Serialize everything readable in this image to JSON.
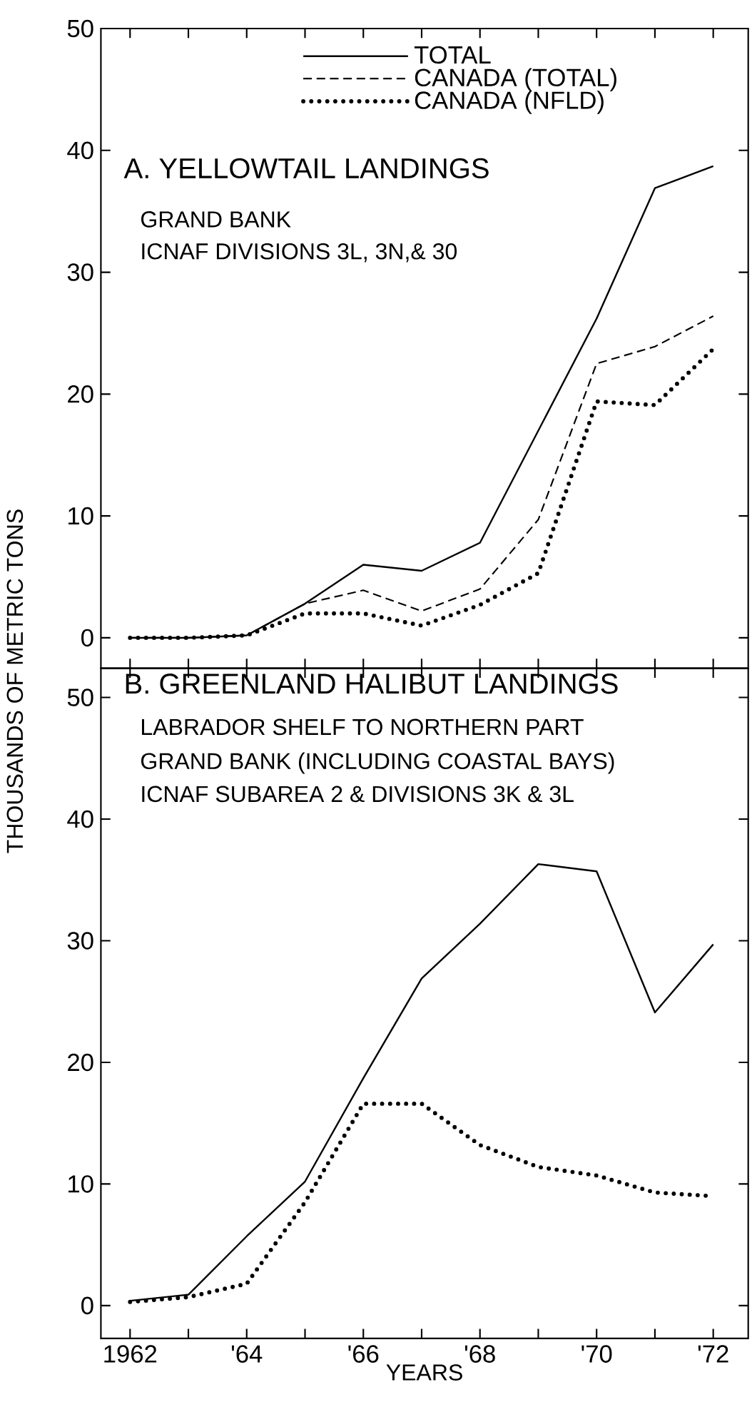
{
  "chart_data": [
    {
      "type": "line",
      "title": "A.  YELLOWTAIL LANDINGS",
      "subtitle": "GRAND BANK",
      "annotations": [
        "ICNAF DIVISIONS 3L, 3N,& 30"
      ],
      "ylabel": "THOUSANDS OF METRIC TONS",
      "x": [
        1962,
        1963,
        1964,
        1965,
        1966,
        1967,
        1968,
        1969,
        1970,
        1971,
        1972
      ],
      "series": [
        {
          "name": "TOTAL",
          "color": "#000000",
          "line_style": "solid",
          "values": [
            0,
            0,
            0.2,
            2.8,
            6.0,
            5.5,
            7.8,
            17,
            26.2,
            36.9,
            38.7
          ]
        },
        {
          "name": "CANADA (TOTAL)",
          "color": "#000000",
          "line_style": "dashed",
          "values": [
            0,
            0,
            0.2,
            2.8,
            3.9,
            2.2,
            4.0,
            9.7,
            22.5,
            23.9,
            26.4
          ]
        },
        {
          "name": "CANADA (NFLD)",
          "color": "#000000",
          "line_style": "dotted",
          "values": [
            0,
            0,
            0.2,
            2.0,
            2.0,
            1.0,
            2.7,
            5.3,
            19.4,
            19.1,
            23.7
          ]
        }
      ],
      "xlim": [
        1961.5,
        1972.6
      ],
      "ylim": [
        -2.5,
        50
      ],
      "xticks": [
        {
          "value": 1962,
          "label": null
        },
        {
          "value": 1963,
          "label": null
        },
        {
          "value": 1964,
          "label": null
        },
        {
          "value": 1965,
          "label": null
        },
        {
          "value": 1966,
          "label": null
        },
        {
          "value": 1967,
          "label": null
        },
        {
          "value": 1968,
          "label": null
        },
        {
          "value": 1969,
          "label": null
        },
        {
          "value": 1970,
          "label": null
        },
        {
          "value": 1971,
          "label": null
        },
        {
          "value": 1972,
          "label": null
        }
      ],
      "yticks": [
        0,
        10,
        20,
        30,
        40,
        50
      ],
      "tick_labels": "y",
      "grid": false,
      "legend": "top"
    },
    {
      "type": "line",
      "title": "B.  GREENLAND HALIBUT LANDINGS",
      "subtitle": "LABRADOR SHELF TO NORTHERN PART",
      "annotations": [
        "GRAND BANK (INCLUDING COASTAL BAYS)",
        "ICNAF SUBAREA 2 & DIVISIONS 3K & 3L"
      ],
      "xlabel": "YEARS",
      "x": [
        1962,
        1963,
        1964,
        1965,
        1966,
        1967,
        1968,
        1969,
        1970,
        1971,
        1972
      ],
      "series": [
        {
          "color": "#000000",
          "line_style": "solid",
          "values": [
            0.4,
            0.9,
            5.7,
            10.2,
            18.7,
            26.9,
            31.4,
            36.3,
            35.7,
            24.1,
            29.7
          ]
        },
        {
          "color": "#000000",
          "line_style": "dotted",
          "values": [
            0.3,
            0.7,
            1.8,
            8.5,
            16.6,
            16.6,
            13.2,
            11.4,
            10.7,
            9.3,
            9.0
          ]
        }
      ],
      "xlim": [
        1961.5,
        1972.6
      ],
      "ylim": [
        -2.7,
        52.4
      ],
      "xticks": [
        {
          "value": 1962,
          "label": "1962"
        },
        {
          "value": 1963,
          "label": null
        },
        {
          "value": 1964,
          "label": "'64"
        },
        {
          "value": 1965,
          "label": null
        },
        {
          "value": 1966,
          "label": "'66"
        },
        {
          "value": 1967,
          "label": null
        },
        {
          "value": 1968,
          "label": "'68"
        },
        {
          "value": 1969,
          "label": null
        },
        {
          "value": 1970,
          "label": "'70"
        },
        {
          "value": 1971,
          "label": null
        },
        {
          "value": 1972,
          "label": "'72"
        }
      ],
      "yticks": [
        0,
        10,
        20,
        30,
        40,
        50
      ],
      "grid": false,
      "legend": false
    }
  ]
}
